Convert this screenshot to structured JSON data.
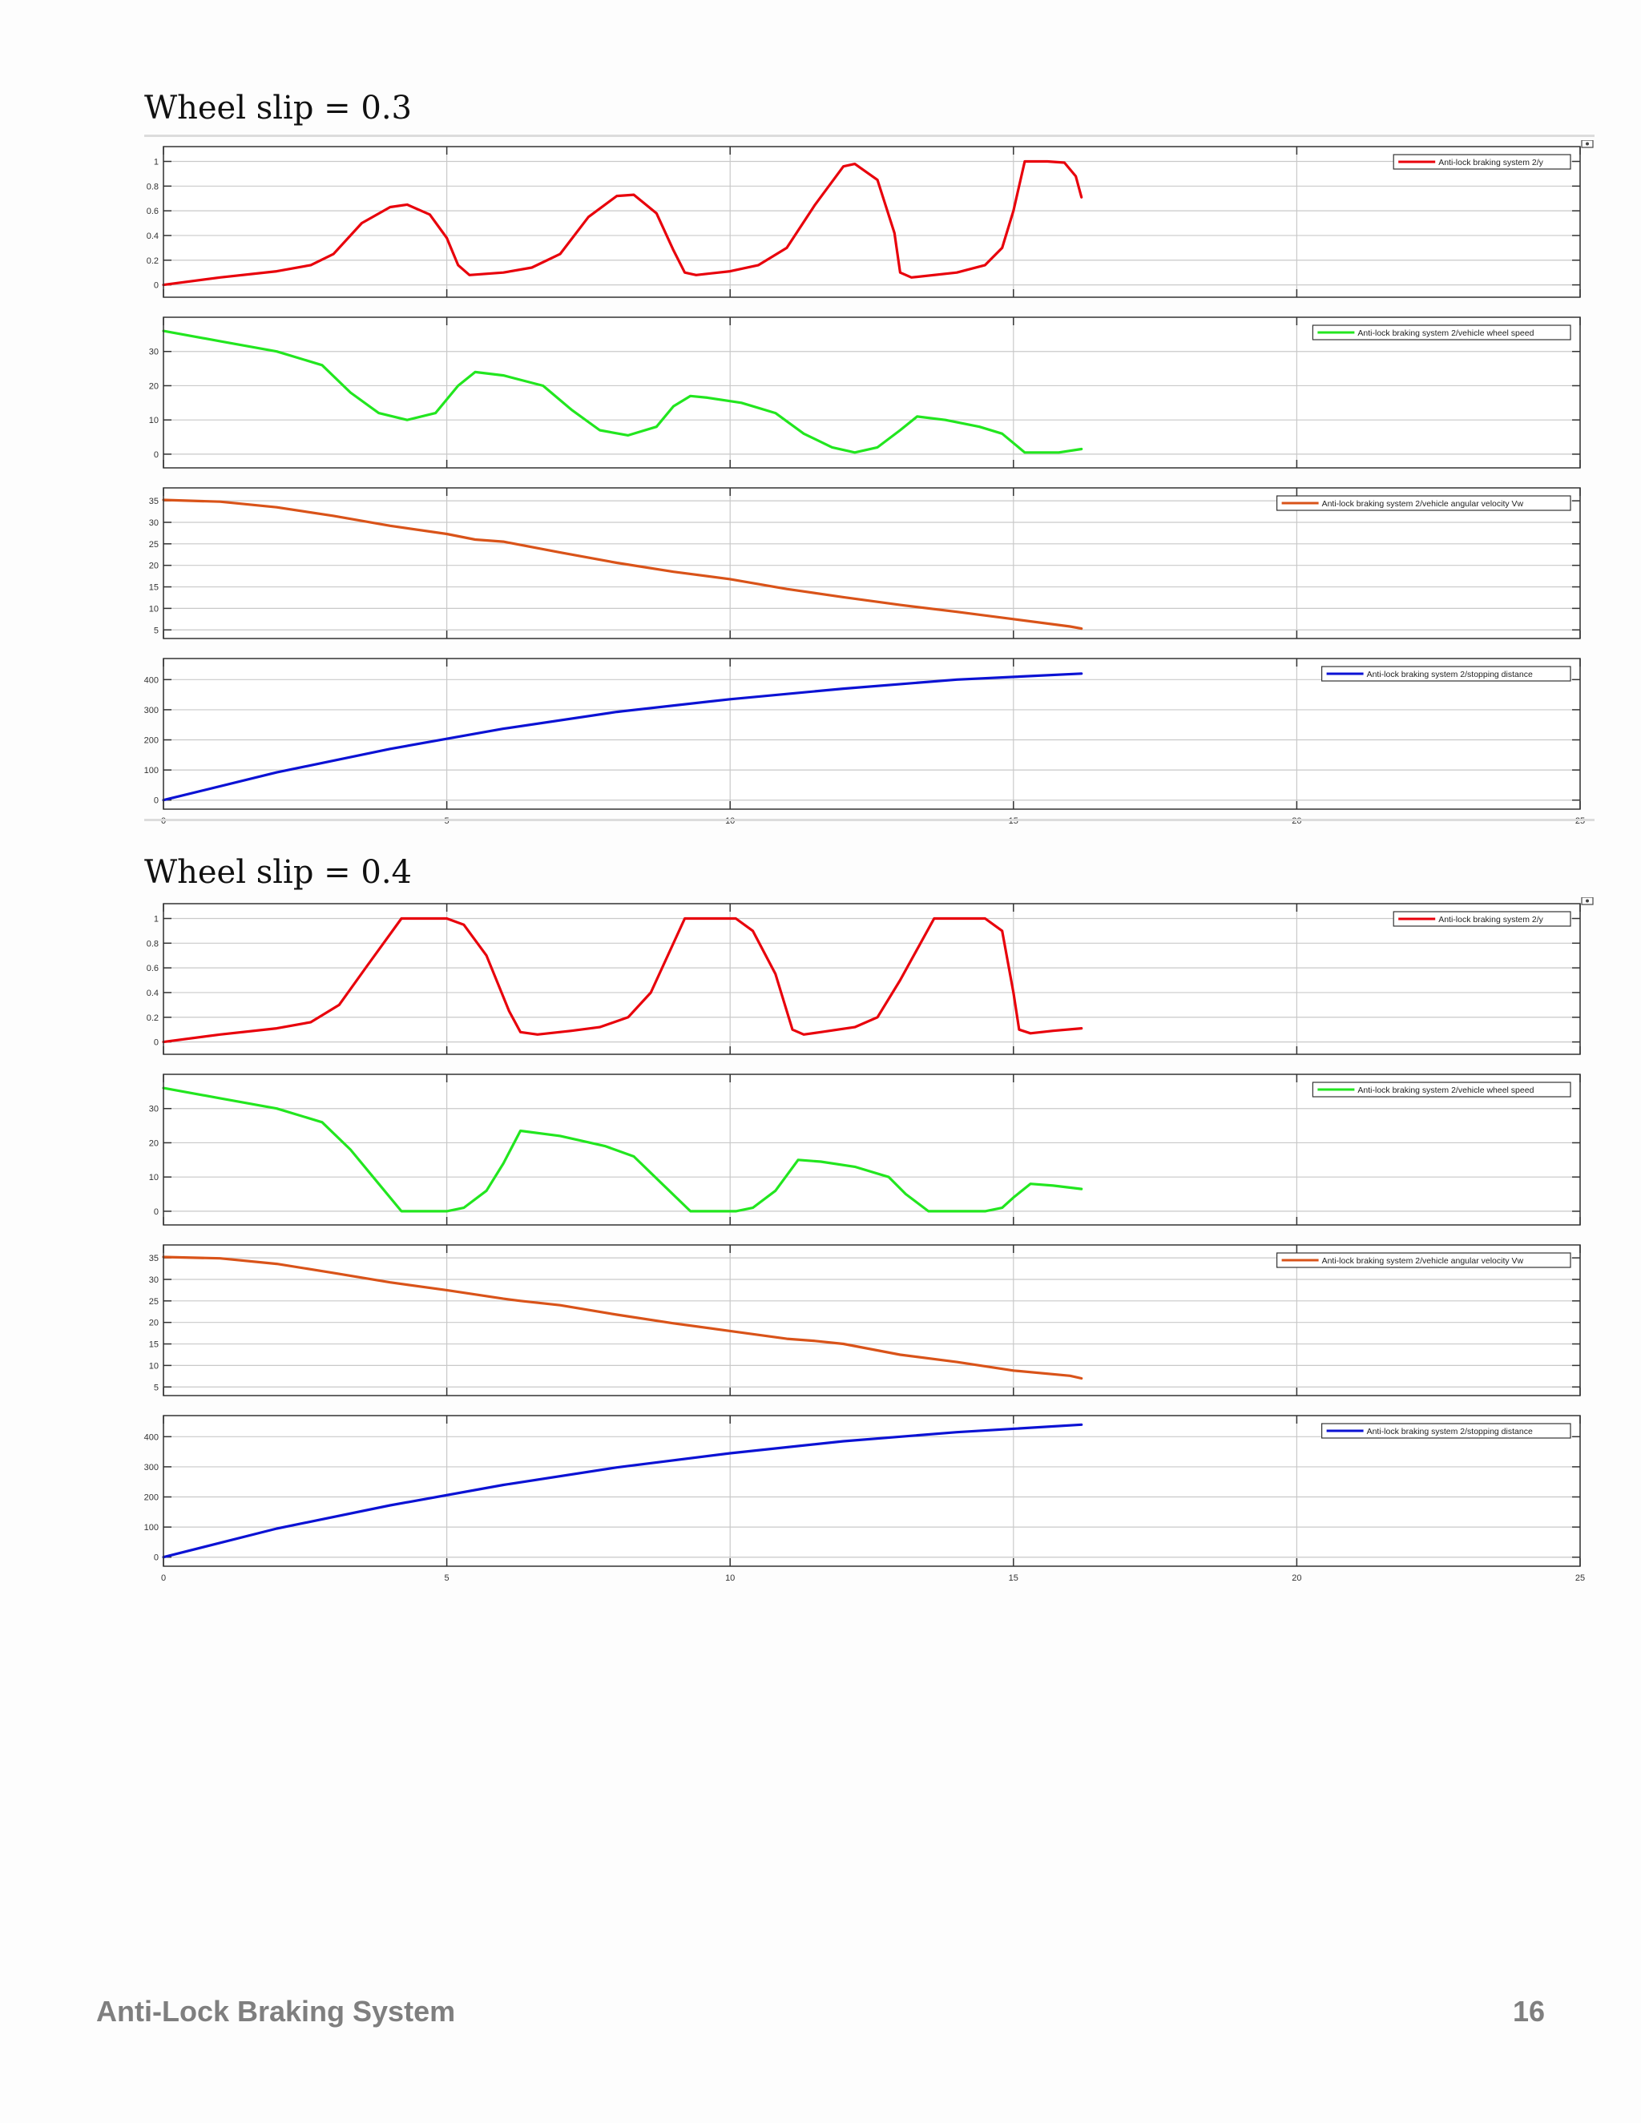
{
  "footer": {
    "title": "Anti-Lock Braking System",
    "page_number": "16"
  },
  "chart_data": [
    {
      "section_title": "Wheel slip = 0.3",
      "x_ticks": [
        0,
        5,
        10,
        15,
        20,
        25
      ],
      "xlim": [
        0,
        25
      ],
      "grid": true,
      "subplots": [
        {
          "type": "line",
          "legend": "Anti-lock braking system 2/y",
          "color": "#e8000b",
          "ylim": [
            -0.1,
            1.12
          ],
          "y_ticks": [
            0,
            0.2,
            0.4,
            0.6,
            0.8,
            1
          ],
          "x": [
            0,
            1,
            2,
            2.6,
            3,
            3.5,
            4,
            4.3,
            4.7,
            5,
            5.2,
            5.4,
            6,
            6.5,
            7,
            7.5,
            8,
            8.3,
            8.7,
            9,
            9.2,
            9.4,
            10,
            10.5,
            11,
            11.5,
            12,
            12.2,
            12.6,
            12.9,
            13,
            13.2,
            14,
            14.5,
            14.8,
            15,
            15.2,
            15.6,
            15.9,
            16.1,
            16.2
          ],
          "y": [
            0,
            0.06,
            0.11,
            0.16,
            0.25,
            0.5,
            0.63,
            0.65,
            0.57,
            0.38,
            0.16,
            0.08,
            0.1,
            0.14,
            0.25,
            0.55,
            0.72,
            0.73,
            0.58,
            0.28,
            0.1,
            0.08,
            0.11,
            0.16,
            0.3,
            0.65,
            0.96,
            0.98,
            0.85,
            0.42,
            0.1,
            0.06,
            0.1,
            0.16,
            0.3,
            0.6,
            1,
            1,
            0.99,
            0.88,
            0.71
          ]
        },
        {
          "type": "line",
          "legend": "Anti-lock braking system 2/vehicle wheel speed",
          "color": "#22e61f",
          "ylim": [
            -4,
            40
          ],
          "y_ticks": [
            0,
            10,
            20,
            30
          ],
          "x": [
            0,
            1,
            2,
            2.8,
            3.3,
            3.8,
            4.3,
            4.8,
            5.2,
            5.5,
            6,
            6.7,
            7.2,
            7.7,
            8.2,
            8.7,
            9,
            9.3,
            9.6,
            10.2,
            10.8,
            11.3,
            11.8,
            12.2,
            12.6,
            13,
            13.3,
            13.8,
            14.4,
            14.8,
            15.2,
            15.8,
            16.2
          ],
          "y": [
            36,
            33,
            30,
            26,
            18,
            12,
            10,
            12,
            20,
            24,
            23,
            20,
            13,
            7,
            5.5,
            8,
            14,
            17,
            16.5,
            15,
            12,
            6,
            2,
            0.5,
            2,
            7,
            11,
            10,
            8,
            6,
            0.5,
            0.5,
            1.5
          ]
        },
        {
          "type": "line",
          "legend": "Anti-lock braking system 2/vehicle angular velocity Vw",
          "color": "#d95319",
          "ylim": [
            3,
            38
          ],
          "y_ticks": [
            5,
            10,
            15,
            20,
            25,
            30,
            35
          ],
          "x": [
            0,
            1,
            2,
            3,
            4,
            5,
            5.5,
            6,
            7,
            8,
            9,
            10,
            11,
            12,
            13,
            14,
            15,
            16,
            16.2
          ],
          "y": [
            35.2,
            34.8,
            33.5,
            31.5,
            29.2,
            27.3,
            26,
            25.5,
            23,
            20.6,
            18.5,
            16.8,
            14.5,
            12.6,
            10.8,
            9.2,
            7.5,
            5.8,
            5.3
          ]
        },
        {
          "type": "line",
          "legend": "Anti-lock braking system 2/stopping distance",
          "color": "#0b12d4",
          "ylim": [
            -30,
            470
          ],
          "y_ticks": [
            0,
            100,
            200,
            300,
            400
          ],
          "x": [
            0,
            2,
            4,
            6,
            8,
            10,
            12,
            14,
            16.2
          ],
          "y": [
            0,
            92,
            170,
            237,
            293,
            335,
            370,
            400,
            420
          ]
        }
      ]
    },
    {
      "section_title": "Wheel slip = 0.4",
      "x_ticks": [
        0,
        5,
        10,
        15,
        20,
        25
      ],
      "xlim": [
        0,
        25
      ],
      "grid": true,
      "subplots": [
        {
          "type": "line",
          "legend": "Anti-lock braking system 2/y",
          "color": "#e8000b",
          "ylim": [
            -0.1,
            1.12
          ],
          "y_ticks": [
            0,
            0.2,
            0.4,
            0.6,
            0.8,
            1
          ],
          "x": [
            0,
            1,
            2,
            2.6,
            3.1,
            3.6,
            4.2,
            5,
            5.3,
            5.7,
            6.1,
            6.3,
            6.6,
            7.2,
            7.7,
            8.2,
            8.6,
            9.2,
            10.1,
            10.4,
            10.8,
            11.1,
            11.3,
            11.6,
            12.2,
            12.6,
            13,
            13.6,
            14.5,
            14.8,
            15,
            15.1,
            15.3,
            15.7,
            16.2
          ],
          "y": [
            0,
            0.06,
            0.11,
            0.16,
            0.3,
            0.62,
            1,
            1,
            0.95,
            0.7,
            0.25,
            0.08,
            0.06,
            0.09,
            0.12,
            0.2,
            0.4,
            1,
            1,
            0.9,
            0.55,
            0.1,
            0.06,
            0.08,
            0.12,
            0.2,
            0.5,
            1,
            1,
            0.9,
            0.4,
            0.1,
            0.07,
            0.09,
            0.11
          ]
        },
        {
          "type": "line",
          "legend": "Anti-lock braking system 2/vehicle wheel speed",
          "color": "#22e61f",
          "ylim": [
            -4,
            40
          ],
          "y_ticks": [
            0,
            10,
            20,
            30
          ],
          "x": [
            0,
            1,
            2,
            2.8,
            3.3,
            3.8,
            4.2,
            5,
            5.3,
            5.7,
            6,
            6.3,
            7,
            7.8,
            8.3,
            8.8,
            9.3,
            10.1,
            10.4,
            10.8,
            11.2,
            11.6,
            12.2,
            12.8,
            13.1,
            13.5,
            14.5,
            14.8,
            15,
            15.3,
            15.7,
            16.2
          ],
          "y": [
            36,
            33,
            30,
            26,
            18,
            8,
            0,
            0,
            1,
            6,
            14,
            23.5,
            22,
            19,
            16,
            8,
            0,
            0,
            1,
            6,
            15,
            14.5,
            13,
            10,
            5,
            0,
            0,
            1,
            4,
            8,
            7.5,
            6.5
          ]
        },
        {
          "type": "line",
          "legend": "Anti-lock braking system 2/vehicle angular velocity Vw",
          "color": "#d95319",
          "ylim": [
            3,
            38
          ],
          "y_ticks": [
            5,
            10,
            15,
            20,
            25,
            30,
            35
          ],
          "x": [
            0,
            1,
            2,
            3,
            4,
            5,
            6,
            6.3,
            7,
            8,
            9,
            10,
            11,
            11.5,
            12,
            13,
            14,
            15,
            16,
            16.2
          ],
          "y": [
            35.2,
            34.9,
            33.6,
            31.5,
            29.3,
            27.5,
            25.5,
            25,
            24,
            21.8,
            19.8,
            18,
            16.2,
            15.7,
            15,
            12.5,
            10.8,
            8.8,
            7.6,
            7
          ]
        },
        {
          "type": "line",
          "legend": "Anti-lock braking system 2/stopping distance",
          "color": "#0b12d4",
          "ylim": [
            -30,
            470
          ],
          "y_ticks": [
            0,
            100,
            200,
            300,
            400
          ],
          "x": [
            0,
            2,
            4,
            6,
            8,
            10,
            12,
            14,
            16.2
          ],
          "y": [
            0,
            95,
            172,
            240,
            298,
            345,
            385,
            415,
            440
          ]
        }
      ]
    }
  ]
}
